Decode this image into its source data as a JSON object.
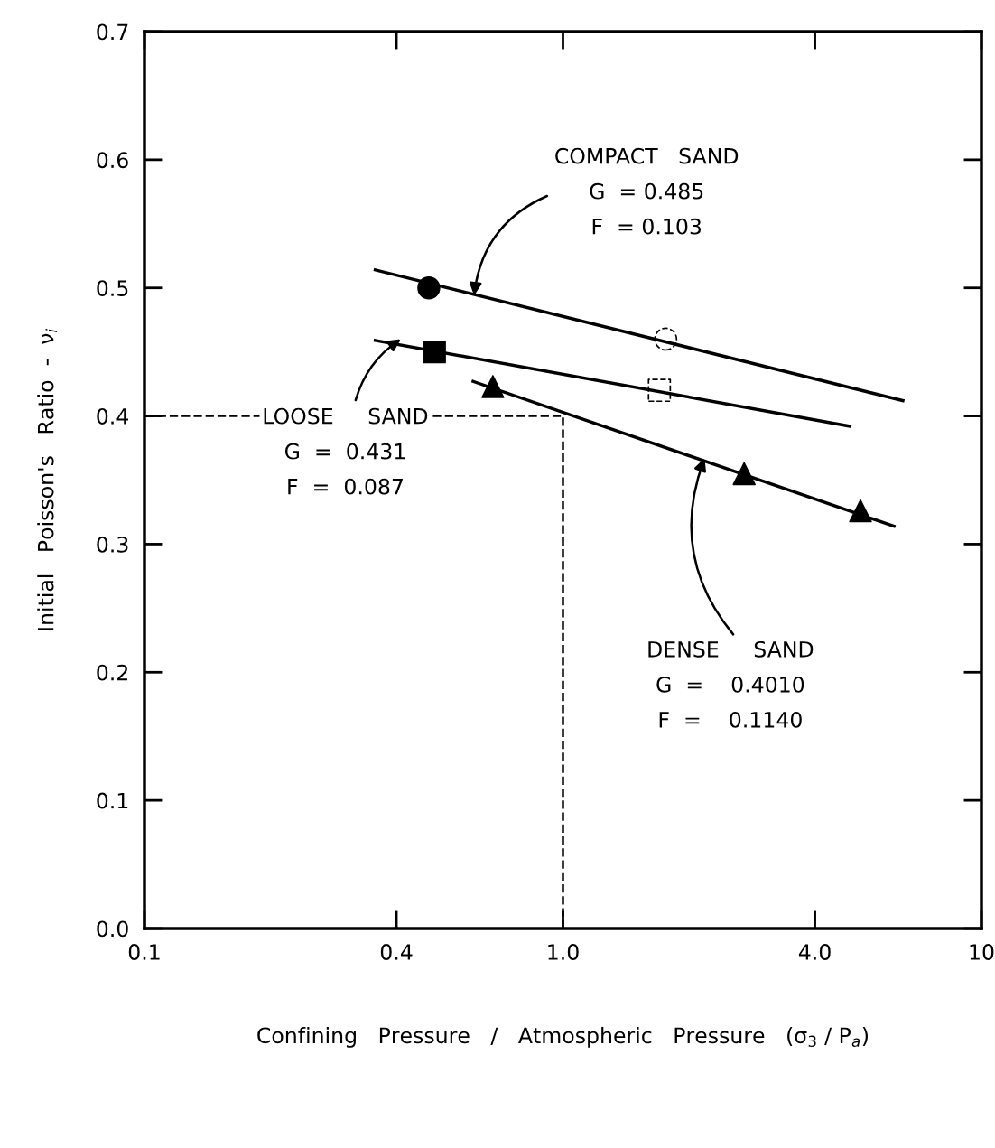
{
  "chart_data": {
    "type": "line",
    "xlabel": "Confining   Pressure   /   Atmospheric   Pressure   (σ$_{3}$ / P$_{a}$)",
    "ylabel": "Initial   Poisson's   Ratio  -  ν$_{i}$",
    "log": "x",
    "xlim": [
      0.1,
      10
    ],
    "xticks": [
      {
        "value": 0.1,
        "label": "0.1"
      },
      0.4,
      {
        "value": 1.0,
        "label": "1.0"
      },
      {
        "value": 4.0,
        "label": "4.0"
      },
      10
    ],
    "ylim": [
      0,
      0.7
    ],
    "yticks": [
      {
        "value": 0,
        "label": "0.0"
      },
      0.1,
      0.2,
      0.3,
      0.4,
      0.5,
      0.6,
      0.7
    ],
    "grid": false,
    "legend": false,
    "series": [
      {
        "color": "#000000",
        "x": [
          0.356,
          6.49
        ],
        "values": [
          0.514,
          0.412
        ],
        "marker": "none",
        "line_style": "solid"
      },
      {
        "color": "#000000",
        "x": [
          0.356,
          4.85
        ],
        "values": [
          0.459,
          0.392
        ],
        "marker": "none",
        "line_style": "solid"
      },
      {
        "color": "#000000",
        "x": [
          0.61,
          6.18
        ],
        "values": [
          0.427,
          0.314
        ],
        "marker": "none",
        "line_style": "solid"
      },
      {
        "type": "scatter",
        "color": "#000000",
        "x": [
          0.478
        ],
        "values": [
          0.5
        ],
        "marker": "circle"
      },
      {
        "type": "scatter",
        "color": "#000000",
        "x": [
          0.493
        ],
        "values": [
          0.45
        ],
        "marker": "square"
      },
      {
        "type": "scatter",
        "color": "#000000",
        "x": [
          0.68,
          2.71,
          5.14
        ],
        "values": [
          0.423,
          0.355,
          0.326
        ],
        "marker": "triangle"
      },
      {
        "type": "scatter",
        "color": "#000000",
        "x": [
          1.76
        ],
        "values": [
          0.46
        ],
        "marker": "circle",
        "line_style": "dashed"
      },
      {
        "type": "scatter",
        "color": "#000000",
        "x": [
          1.7
        ],
        "values": [
          0.42
        ],
        "marker": "square",
        "line_style": "dashed"
      },
      {
        "color": "#000000",
        "x": [
          1.0,
          1.0,
          0.1
        ],
        "values": [
          0.0,
          0.4,
          0.4
        ],
        "marker": "none",
        "line_style": "dashed"
      }
    ],
    "annotations": [
      {
        "text": "COMPACT   SAND\nG  = 0.485\nF  = 0.103",
        "x": 0.613,
        "y": 0.494
      },
      {
        "text": "LOOSE     SAND\nG  =  0.431\nF  =  0.087",
        "x": 0.41,
        "y": 0.46
      },
      {
        "text": "DENSE     SAND\nG  =    0.4010\nF  =    0.1140",
        "x": 2.18,
        "y": 0.367
      }
    ]
  }
}
